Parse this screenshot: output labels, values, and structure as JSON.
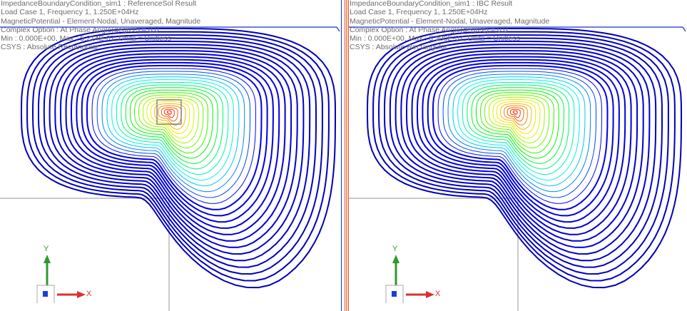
{
  "panels": [
    {
      "id": "reference",
      "lines": [
        "ImpedanceBoundaryCondition_sim1 : ReferenceSol Result",
        "Load Case 1, Frequency 1, 1.250E+04Hz",
        "MagneticPotential - Element-Nodal, Unaveraged, Magnitude",
        "Complex Option : At Phase Angle(degree) =   0.0",
        "Min : 0.000E+00, Max : 5.214E-07, Units = Unitless",
        "CSYS : Absolute Rectangular"
      ],
      "show_conductor_box": true
    },
    {
      "id": "ibc",
      "lines": [
        "ImpedanceBoundaryCondition_sim1 : IBC Result",
        "Load Case 1, Frequency 1, 1.250E+04Hz",
        "MagneticPotential - Element-Nodal, Unaveraged, Magnitude",
        "Complex Option : At Phase Angle(degree) =   0.0",
        "Min : 0.000E+00, Max : 5.300E-07, Units = Unitless",
        "CSYS : Absolute Rectangular"
      ],
      "show_conductor_box": false
    }
  ],
  "triad": {
    "x_label": "X",
    "y_label": "Y",
    "x_color": "#d93030",
    "y_color": "#2e9a2e",
    "origin_color": "#1a3fd8"
  },
  "colors": {
    "boundary": "#1a2fd0",
    "geometry": "#b8b8b8",
    "divider": "#e84a3a"
  },
  "icons": {
    "triad": "coordinate-triad-icon"
  }
}
